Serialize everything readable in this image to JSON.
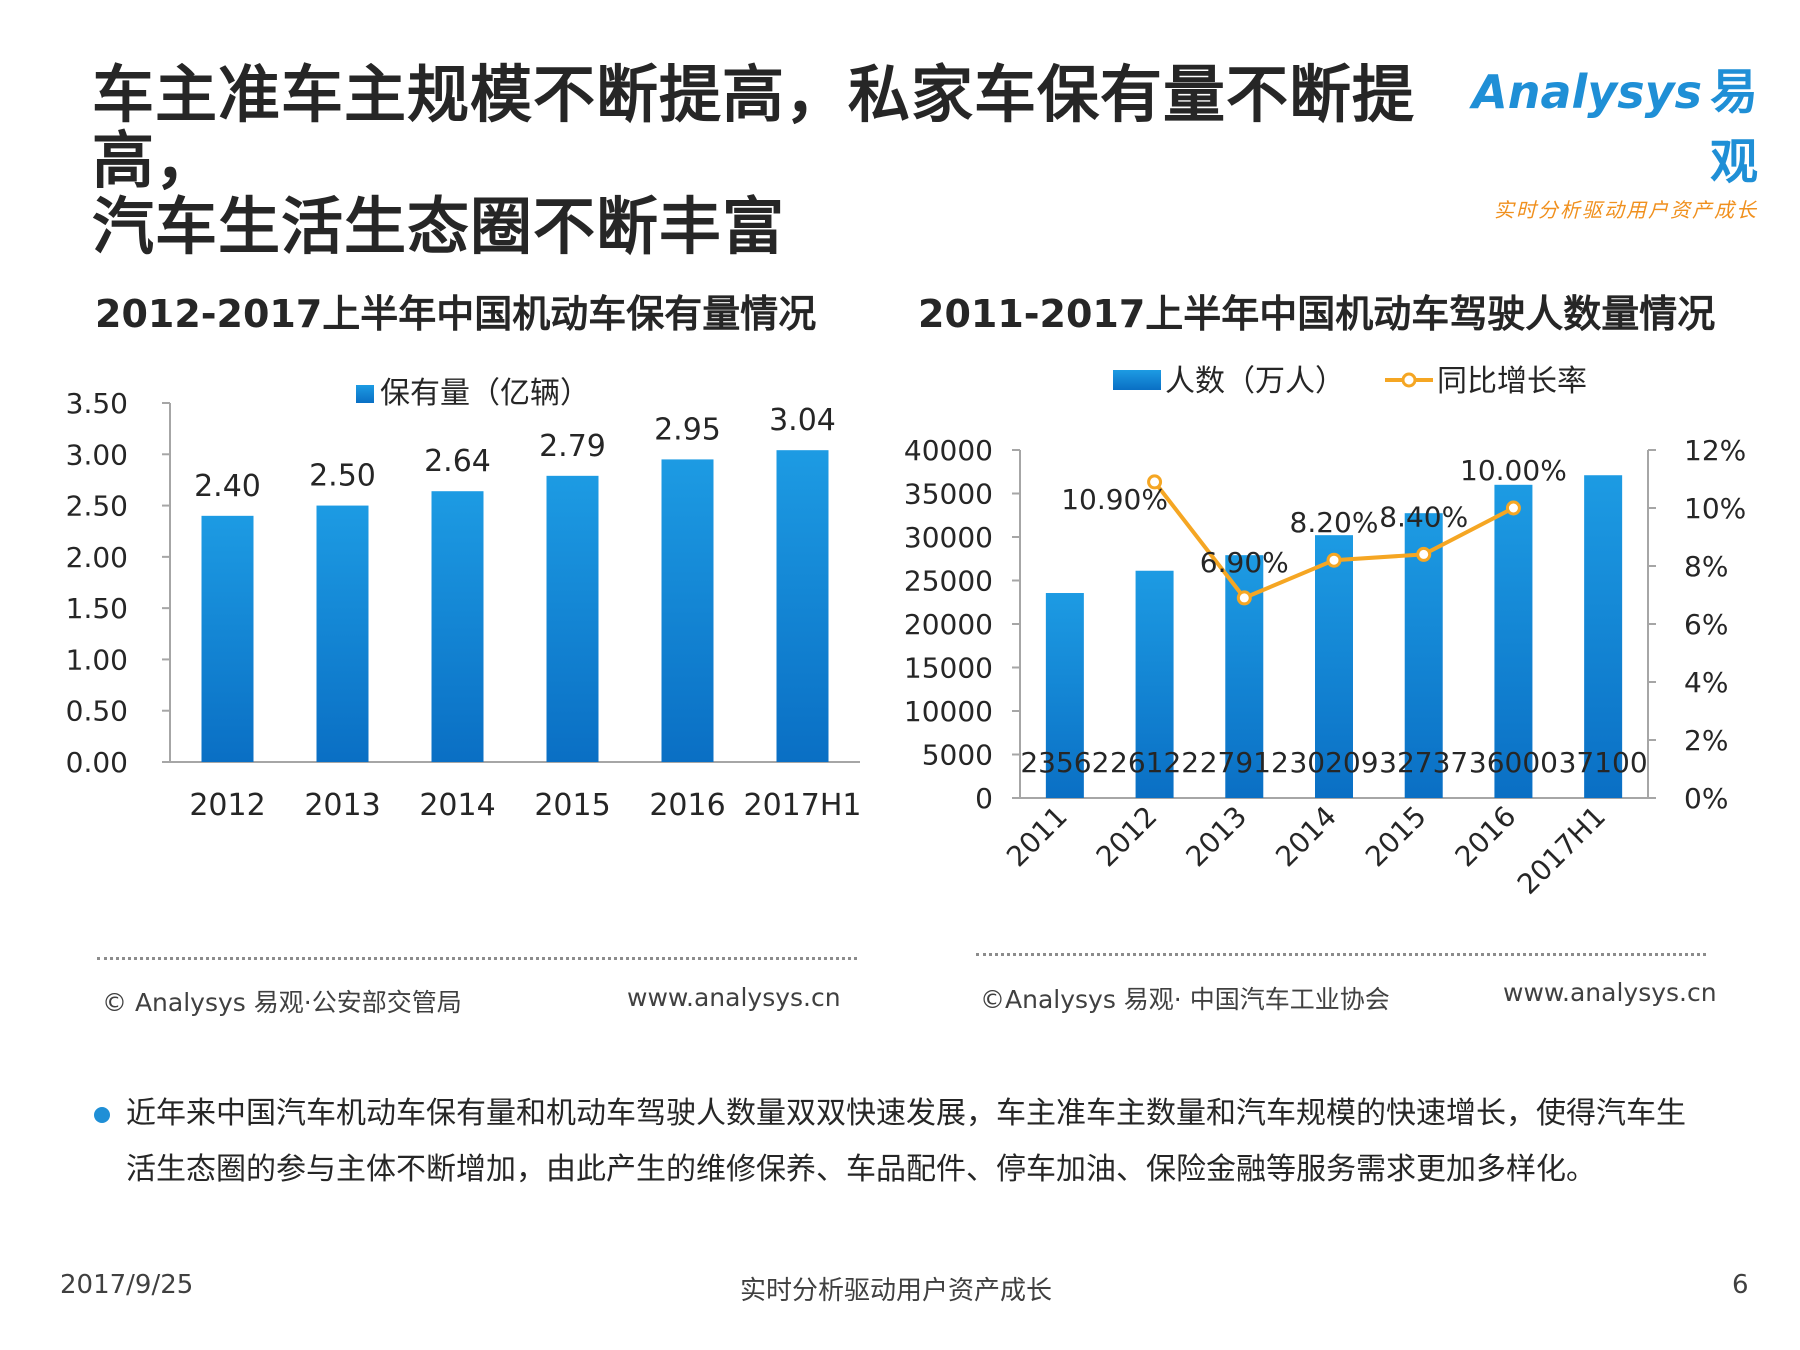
{
  "page": {
    "title_line1": "车主准车主规模不断提高，私家车保有量不断提高，",
    "title_line2": "汽车生活生态圈不断丰富",
    "logo": {
      "brand_en": "Analysys",
      "brand_cn": "易观",
      "slogan": "实时分析驱动用户资产成长"
    },
    "bullet": {
      "line1": "近年来中国汽车机动车保有量和机动车驾驶人数量双双快速发展，车主准车主数量和汽车规模的快速增长，使得汽车生",
      "line2": "活生态圈的参与主体不断增加，由此产生的维修保养、车品配件、停车加油、保险金融等服务需求更加多样化。"
    },
    "footer": {
      "date": "2017/9/25",
      "slogan": "实时分析驱动用户资产成长",
      "page_number": "6"
    },
    "colors": {
      "bar": "#1a8ad4",
      "line": "#f5a623",
      "brand": "#1f8fd6",
      "accent": "#f0901e"
    }
  },
  "chart_data": [
    {
      "type": "bar",
      "title": "2012-2017上半年中国机动车保有量情况",
      "categories": [
        "2012",
        "2013",
        "2014",
        "2015",
        "2016",
        "2017H1"
      ],
      "series": [
        {
          "name": "保有量（亿辆）",
          "values": [
            2.4,
            2.5,
            2.64,
            2.79,
            2.95,
            3.04
          ]
        }
      ],
      "data_labels": [
        "2.40",
        "2.50",
        "2.64",
        "2.79",
        "2.95",
        "3.04"
      ],
      "ylim": [
        0,
        3.5
      ],
      "yticks": [
        "0.00",
        "0.50",
        "1.00",
        "1.50",
        "2.00",
        "2.50",
        "3.00",
        "3.50"
      ],
      "legend": "top-center",
      "grid": false,
      "source": "© Analysys 易观·公安部交管局",
      "website": "www.analysys.cn"
    },
    {
      "type": "bar",
      "title": "2011-2017上半年中国机动车驾驶人数量情况",
      "categories": [
        "2011",
        "2012",
        "2013",
        "2014",
        "2015",
        "2016",
        "2017H1"
      ],
      "series": [
        {
          "name": "人数（万人）",
          "type": "bar",
          "axis": "left",
          "values": [
            23562,
            26122,
            27912,
            30209,
            32737,
            36000,
            37100
          ],
          "labels": [
            "23562",
            "26122",
            "27912",
            "30209",
            "32737",
            "36000",
            "37100"
          ]
        },
        {
          "name": "同比增长率",
          "type": "line",
          "axis": "right",
          "values": [
            null,
            10.9,
            6.9,
            8.2,
            8.4,
            10.0,
            null
          ],
          "labels": [
            "",
            "10.90%",
            "6.90%",
            "8.20%",
            "8.40%",
            "10.00%",
            ""
          ]
        }
      ],
      "ylim_left": [
        0,
        40000
      ],
      "yticks_left": [
        "0",
        "5000",
        "10000",
        "15000",
        "20000",
        "25000",
        "30000",
        "35000",
        "40000"
      ],
      "ylim_right": [
        0,
        12
      ],
      "yticks_right": [
        "0%",
        "2%",
        "4%",
        "6%",
        "8%",
        "10%",
        "12%"
      ],
      "legend": "top-center",
      "grid": false,
      "source": "©Analysys 易观· 中国汽车工业协会",
      "website": "www.analysys.cn"
    }
  ]
}
